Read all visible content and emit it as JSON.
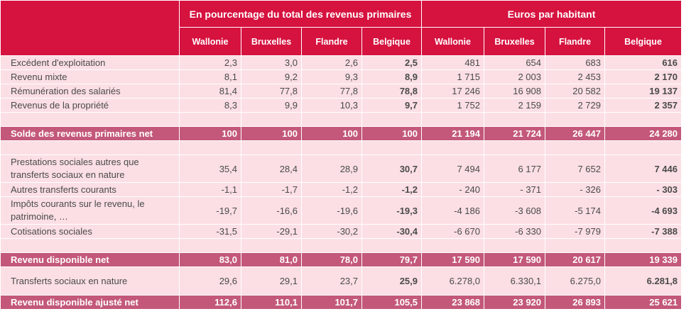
{
  "header": {
    "group1": "En pourcentage du total des revenus primaires",
    "group2": "Euros par habitant",
    "cols": [
      "Wallonie",
      "Bruxelles",
      "Flandre",
      "Belgique",
      "Wallonie",
      "Bruxelles",
      "Flandre",
      "Belgique"
    ]
  },
  "rows": [
    {
      "label": "Excédent d'exploitation",
      "values": [
        "2,3",
        "3,0",
        "2,6",
        "2,5",
        "481",
        "654",
        "683",
        "616"
      ]
    },
    {
      "label": "Revenu mixte",
      "values": [
        "8,1",
        "9,2",
        "9,3",
        "8,9",
        "1 715",
        "2 003",
        "2 453",
        "2 170"
      ]
    },
    {
      "label": "Rémunération des salariés",
      "values": [
        "81,4",
        "77,8",
        "77,8",
        "78,8",
        "17 246",
        "16 908",
        "20 582",
        "19 137"
      ]
    },
    {
      "label": "Revenus de la propriété",
      "values": [
        "8,3",
        "9,9",
        "10,3",
        "9,7",
        "1 752",
        "2 159",
        "2 729",
        "2 357"
      ]
    },
    {
      "label": "Solde des revenus primaires net",
      "values": [
        "100",
        "100",
        "100",
        "100",
        "21 194",
        "21 724",
        "26 447",
        "24 280"
      ]
    },
    {
      "label": "Prestations sociales autres que transferts sociaux en nature",
      "values": [
        "35,4",
        "28,4",
        "28,9",
        "30,7",
        "7 494",
        "6 177",
        "7 652",
        "7 446"
      ]
    },
    {
      "label": "Autres transferts courants",
      "values": [
        "-1,1",
        "-1,7",
        "-1,2",
        "-1,2",
        "- 240",
        "- 371",
        "- 326",
        "- 303"
      ]
    },
    {
      "label": "Impôts courants sur le revenu, le patrimoine, …",
      "values": [
        "-19,7",
        "-16,6",
        "-19,6",
        "-19,3",
        "-4 186",
        "-3 608",
        "-5 174",
        "-4 693"
      ]
    },
    {
      "label": "Cotisations sociales",
      "values": [
        "-31,5",
        "-29,1",
        "-30,2",
        "-30,4",
        "-6 670",
        "-6 330",
        "-7 979",
        "-7 388"
      ]
    },
    {
      "label": "Revenu disponible net",
      "values": [
        "83,0",
        "81,0",
        "78,0",
        "79,7",
        "17 590",
        "17 590",
        "20 617",
        "19 339"
      ]
    },
    {
      "label": "Transferts sociaux en nature",
      "values": [
        "29,6",
        "29,1",
        "23,7",
        "25,9",
        "6.278,0",
        "6.330,1",
        "6.275,0",
        "6.281,8"
      ]
    },
    {
      "label": "Revenu disponible ajusté net",
      "values": [
        "112,6",
        "110,1",
        "101,7",
        "105,5",
        "23 868",
        "23 920",
        "26 893",
        "25 621"
      ]
    }
  ]
}
